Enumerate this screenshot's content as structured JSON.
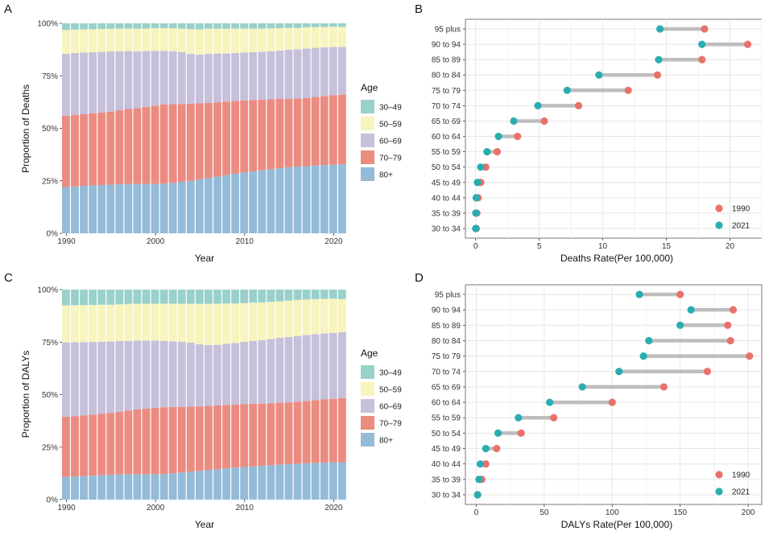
{
  "colors": {
    "a30_49": "#99d1ca",
    "a50_59": "#f7f4bd",
    "a60_69": "#c6c0db",
    "a70_79": "#ec8b80",
    "a80p": "#94bbd8",
    "c1990": "#e8726a",
    "c2021": "#2aadb0",
    "seg": "#bdbdbd",
    "grid": "#e6e6e6"
  },
  "chart_data": [
    {
      "id": "A",
      "panel_label": "A",
      "type": "stacked-bar",
      "title": "",
      "xlabel": "Year",
      "ylabel": "Proportion of Deaths",
      "years": [
        1990,
        1991,
        1992,
        1993,
        1994,
        1995,
        1996,
        1997,
        1998,
        1999,
        2000,
        2001,
        2002,
        2003,
        2004,
        2005,
        2006,
        2007,
        2008,
        2009,
        2010,
        2011,
        2012,
        2013,
        2014,
        2015,
        2016,
        2017,
        2018,
        2019,
        2020,
        2021
      ],
      "x_ticks": [
        "1990",
        "2000",
        "2010",
        "2020"
      ],
      "y_ticks": [
        "0%",
        "25%",
        "50%",
        "75%",
        "100%"
      ],
      "ylim": [
        0,
        100
      ],
      "legend_title": "Age",
      "series": [
        {
          "name": "80+",
          "color_key": "a80p",
          "values": [
            22,
            22.3,
            22.6,
            22.8,
            23,
            23.2,
            23.4,
            23.5,
            23.5,
            23.5,
            23.5,
            23.6,
            24,
            24.5,
            25,
            25.7,
            26.3,
            27,
            27.7,
            28.4,
            29,
            29.5,
            30,
            30.5,
            31,
            31.5,
            31.8,
            32,
            32.3,
            32.5,
            32.7,
            32.9
          ]
        },
        {
          "name": "70–79",
          "color_key": "a70_79",
          "values": [
            34,
            34.1,
            34.1,
            34.3,
            34.5,
            34.8,
            35.2,
            35.7,
            36.1,
            36.7,
            37.3,
            37.7,
            37.5,
            37,
            36.7,
            36.2,
            35.8,
            35.4,
            35,
            34.6,
            34.3,
            34,
            33.6,
            33.3,
            33,
            32.6,
            32.4,
            32.4,
            32.6,
            32.8,
            33,
            33.1
          ]
        },
        {
          "name": "60–69",
          "color_key": "a60_69",
          "values": [
            29.5,
            29.4,
            29.3,
            29.1,
            28.9,
            28.6,
            28.1,
            27.6,
            27.1,
            26.6,
            26.1,
            25.6,
            25.2,
            24.8,
            23.7,
            23.2,
            23.4,
            23.2,
            22.9,
            22.9,
            22.8,
            22.8,
            22.9,
            22.9,
            23,
            23.3,
            23.4,
            23.6,
            23.4,
            23.2,
            23,
            22.7
          ]
        },
        {
          "name": "50–59",
          "color_key": "a50_59",
          "values": [
            11.3,
            11.2,
            11.1,
            11,
            10.9,
            10.8,
            10.8,
            10.7,
            10.7,
            10.7,
            10.8,
            10.8,
            10.9,
            11.2,
            11.8,
            12,
            11.9,
            11.8,
            11.8,
            11.6,
            11.4,
            11.2,
            11,
            10.9,
            10.7,
            10.4,
            10.2,
            10.1,
            9.9,
            9.8,
            9.7,
            9.6
          ]
        },
        {
          "name": "30–49",
          "color_key": "a30_49",
          "values": [
            3.2,
            3.0,
            2.9,
            2.8,
            2.7,
            2.6,
            2.5,
            2.5,
            2.6,
            2.5,
            2.3,
            2.3,
            2.4,
            2.5,
            2.8,
            2.9,
            2.6,
            2.6,
            2.6,
            2.5,
            2.5,
            2.5,
            2.5,
            2.4,
            2.3,
            2.2,
            2.2,
            1.9,
            1.8,
            1.7,
            1.6,
            1.7
          ]
        }
      ]
    },
    {
      "id": "B",
      "panel_label": "B",
      "type": "dumbbell",
      "xlabel": "Deaths Rate(Per 100,000)",
      "ylabel": "",
      "categories": [
        "95 plus",
        "90 to 94",
        "85 to 89",
        "80 to 84",
        "75 to 79",
        "70 to 74",
        "65 to 69",
        "60 to 64",
        "55 to 59",
        "50 to 54",
        "45 to 49",
        "40 to 44",
        "35 to 39",
        "30 to 34"
      ],
      "x_ticks": [
        "0",
        "5",
        "10",
        "15",
        "20"
      ],
      "xlim": [
        -0.8,
        22.5
      ],
      "legend": [
        "1990",
        "2021"
      ],
      "series": [
        {
          "name": "1990",
          "color_key": "c1990",
          "values": [
            18.0,
            21.4,
            17.8,
            14.3,
            12.0,
            8.1,
            5.4,
            3.3,
            1.7,
            0.8,
            0.4,
            0.2,
            0.1,
            0.05
          ]
        },
        {
          "name": "2021",
          "color_key": "c2021",
          "values": [
            14.5,
            17.8,
            14.4,
            9.7,
            7.2,
            4.9,
            3.0,
            1.8,
            0.9,
            0.4,
            0.15,
            0.05,
            0.02,
            0.01
          ]
        }
      ]
    },
    {
      "id": "C",
      "panel_label": "C",
      "type": "stacked-bar",
      "title": "",
      "xlabel": "Year",
      "ylabel": "Proportion of DALYs",
      "years": [
        1990,
        1991,
        1992,
        1993,
        1994,
        1995,
        1996,
        1997,
        1998,
        1999,
        2000,
        2001,
        2002,
        2003,
        2004,
        2005,
        2006,
        2007,
        2008,
        2009,
        2010,
        2011,
        2012,
        2013,
        2014,
        2015,
        2016,
        2017,
        2018,
        2019,
        2020,
        2021
      ],
      "x_ticks": [
        "1990",
        "2000",
        "2010",
        "2020"
      ],
      "y_ticks": [
        "0%",
        "25%",
        "50%",
        "75%",
        "100%"
      ],
      "ylim": [
        0,
        100
      ],
      "legend_title": "Age",
      "series": [
        {
          "name": "80+",
          "color_key": "a80p",
          "values": [
            10.8,
            11,
            11.2,
            11.4,
            11.6,
            11.8,
            12,
            12.1,
            12.1,
            12.1,
            12.1,
            12.2,
            12.5,
            12.9,
            13.3,
            13.7,
            14.1,
            14.5,
            14.9,
            15.2,
            15.5,
            15.8,
            16.1,
            16.4,
            16.7,
            16.9,
            17.1,
            17.3,
            17.5,
            17.6,
            17.7,
            17.8
          ]
        },
        {
          "name": "70–79",
          "color_key": "a70_79",
          "values": [
            28.7,
            28.8,
            28.9,
            29.0,
            29.2,
            29.5,
            29.8,
            30.3,
            30.8,
            31.3,
            31.6,
            31.8,
            31.6,
            31.3,
            31.0,
            30.7,
            30.5,
            30.4,
            30.2,
            30.0,
            29.9,
            29.8,
            29.6,
            29.5,
            29.4,
            29.4,
            29.5,
            29.7,
            29.9,
            30.1,
            30.3,
            30.6
          ]
        },
        {
          "name": "60–69",
          "color_key": "a60_69",
          "values": [
            35.3,
            35.1,
            34.9,
            34.7,
            34.4,
            34.0,
            33.7,
            33.2,
            32.8,
            32.3,
            32.0,
            31.6,
            31.3,
            31.0,
            30.4,
            29.6,
            29.0,
            28.8,
            29.1,
            29.4,
            29.7,
            30.0,
            30.3,
            30.6,
            30.9,
            31.1,
            31.3,
            31.4,
            31.4,
            31.4,
            31.4,
            31.3
          ]
        },
        {
          "name": "50–59",
          "color_key": "a50_59",
          "values": [
            17.7,
            17.7,
            17.6,
            17.6,
            17.6,
            17.5,
            17.5,
            17.6,
            17.6,
            17.6,
            17.6,
            17.7,
            17.9,
            18.1,
            18.6,
            19.2,
            19.6,
            19.6,
            19.2,
            18.8,
            18.5,
            18.2,
            17.9,
            17.7,
            17.4,
            17.3,
            17.2,
            16.9,
            16.7,
            16.5,
            16.3,
            15.8
          ]
        },
        {
          "name": "30–49",
          "color_key": "a30_49",
          "values": [
            7.5,
            7.4,
            7.4,
            7.3,
            7.2,
            7.2,
            7.0,
            6.8,
            6.7,
            6.7,
            6.7,
            6.7,
            6.7,
            6.7,
            6.7,
            6.8,
            6.8,
            6.7,
            6.6,
            6.6,
            6.4,
            6.2,
            6.1,
            5.8,
            5.6,
            5.3,
            4.9,
            4.7,
            4.5,
            4.4,
            4.3,
            4.5
          ]
        }
      ]
    },
    {
      "id": "D",
      "panel_label": "D",
      "type": "dumbbell",
      "xlabel": "DALYs Rate(Per 100,000)",
      "ylabel": "",
      "categories": [
        "95 plus",
        "90 to 94",
        "85 to 89",
        "80 to 84",
        "75 to 79",
        "70 to 74",
        "65 to 69",
        "60 to 64",
        "55 to 59",
        "50 to 54",
        "45 to 49",
        "40 to 44",
        "35 to 39",
        "30 to 34"
      ],
      "x_ticks": [
        "0",
        "50",
        "100",
        "150",
        "200"
      ],
      "xlim": [
        -8,
        210
      ],
      "legend": [
        "1990",
        "2021"
      ],
      "series": [
        {
          "name": "1990",
          "color_key": "c1990",
          "values": [
            150,
            189,
            185,
            187,
            201,
            170,
            138,
            100,
            57,
            33,
            15,
            7,
            4,
            1
          ]
        },
        {
          "name": "2021",
          "color_key": "c2021",
          "values": [
            120,
            158,
            150,
            127,
            123,
            105,
            78,
            54,
            31,
            16,
            7,
            3,
            2,
            1
          ]
        }
      ]
    }
  ]
}
